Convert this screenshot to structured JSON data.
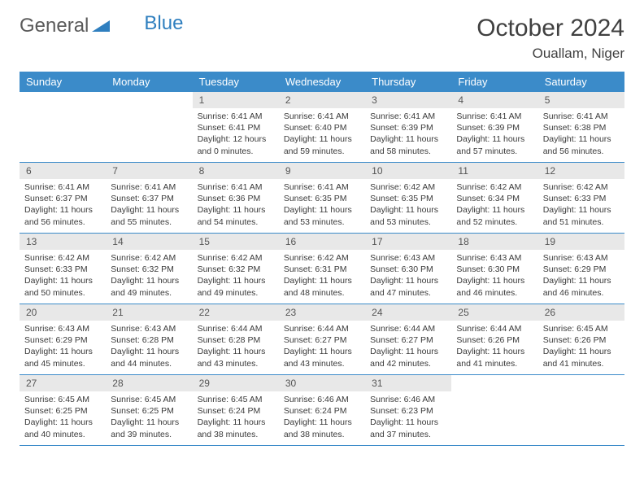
{
  "logo": {
    "text1": "General",
    "text2": "Blue"
  },
  "title": "October 2024",
  "location": "Ouallam, Niger",
  "weekdays": [
    "Sunday",
    "Monday",
    "Tuesday",
    "Wednesday",
    "Thursday",
    "Friday",
    "Saturday"
  ],
  "colors": {
    "header_bg": "#3b8bc9",
    "header_text": "#ffffff",
    "daynum_bg": "#e8e8e8",
    "week_border": "#3b8bc9",
    "body_text": "#3a3a3a",
    "logo_gray": "#5a5a5a",
    "logo_blue": "#2f7fbf"
  },
  "days": [
    {
      "n": "",
      "sr": "",
      "ss": "",
      "dl": ""
    },
    {
      "n": "",
      "sr": "",
      "ss": "",
      "dl": ""
    },
    {
      "n": "1",
      "sr": "Sunrise: 6:41 AM",
      "ss": "Sunset: 6:41 PM",
      "dl": "Daylight: 12 hours and 0 minutes."
    },
    {
      "n": "2",
      "sr": "Sunrise: 6:41 AM",
      "ss": "Sunset: 6:40 PM",
      "dl": "Daylight: 11 hours and 59 minutes."
    },
    {
      "n": "3",
      "sr": "Sunrise: 6:41 AM",
      "ss": "Sunset: 6:39 PM",
      "dl": "Daylight: 11 hours and 58 minutes."
    },
    {
      "n": "4",
      "sr": "Sunrise: 6:41 AM",
      "ss": "Sunset: 6:39 PM",
      "dl": "Daylight: 11 hours and 57 minutes."
    },
    {
      "n": "5",
      "sr": "Sunrise: 6:41 AM",
      "ss": "Sunset: 6:38 PM",
      "dl": "Daylight: 11 hours and 56 minutes."
    },
    {
      "n": "6",
      "sr": "Sunrise: 6:41 AM",
      "ss": "Sunset: 6:37 PM",
      "dl": "Daylight: 11 hours and 56 minutes."
    },
    {
      "n": "7",
      "sr": "Sunrise: 6:41 AM",
      "ss": "Sunset: 6:37 PM",
      "dl": "Daylight: 11 hours and 55 minutes."
    },
    {
      "n": "8",
      "sr": "Sunrise: 6:41 AM",
      "ss": "Sunset: 6:36 PM",
      "dl": "Daylight: 11 hours and 54 minutes."
    },
    {
      "n": "9",
      "sr": "Sunrise: 6:41 AM",
      "ss": "Sunset: 6:35 PM",
      "dl": "Daylight: 11 hours and 53 minutes."
    },
    {
      "n": "10",
      "sr": "Sunrise: 6:42 AM",
      "ss": "Sunset: 6:35 PM",
      "dl": "Daylight: 11 hours and 53 minutes."
    },
    {
      "n": "11",
      "sr": "Sunrise: 6:42 AM",
      "ss": "Sunset: 6:34 PM",
      "dl": "Daylight: 11 hours and 52 minutes."
    },
    {
      "n": "12",
      "sr": "Sunrise: 6:42 AM",
      "ss": "Sunset: 6:33 PM",
      "dl": "Daylight: 11 hours and 51 minutes."
    },
    {
      "n": "13",
      "sr": "Sunrise: 6:42 AM",
      "ss": "Sunset: 6:33 PM",
      "dl": "Daylight: 11 hours and 50 minutes."
    },
    {
      "n": "14",
      "sr": "Sunrise: 6:42 AM",
      "ss": "Sunset: 6:32 PM",
      "dl": "Daylight: 11 hours and 49 minutes."
    },
    {
      "n": "15",
      "sr": "Sunrise: 6:42 AM",
      "ss": "Sunset: 6:32 PM",
      "dl": "Daylight: 11 hours and 49 minutes."
    },
    {
      "n": "16",
      "sr": "Sunrise: 6:42 AM",
      "ss": "Sunset: 6:31 PM",
      "dl": "Daylight: 11 hours and 48 minutes."
    },
    {
      "n": "17",
      "sr": "Sunrise: 6:43 AM",
      "ss": "Sunset: 6:30 PM",
      "dl": "Daylight: 11 hours and 47 minutes."
    },
    {
      "n": "18",
      "sr": "Sunrise: 6:43 AM",
      "ss": "Sunset: 6:30 PM",
      "dl": "Daylight: 11 hours and 46 minutes."
    },
    {
      "n": "19",
      "sr": "Sunrise: 6:43 AM",
      "ss": "Sunset: 6:29 PM",
      "dl": "Daylight: 11 hours and 46 minutes."
    },
    {
      "n": "20",
      "sr": "Sunrise: 6:43 AM",
      "ss": "Sunset: 6:29 PM",
      "dl": "Daylight: 11 hours and 45 minutes."
    },
    {
      "n": "21",
      "sr": "Sunrise: 6:43 AM",
      "ss": "Sunset: 6:28 PM",
      "dl": "Daylight: 11 hours and 44 minutes."
    },
    {
      "n": "22",
      "sr": "Sunrise: 6:44 AM",
      "ss": "Sunset: 6:28 PM",
      "dl": "Daylight: 11 hours and 43 minutes."
    },
    {
      "n": "23",
      "sr": "Sunrise: 6:44 AM",
      "ss": "Sunset: 6:27 PM",
      "dl": "Daylight: 11 hours and 43 minutes."
    },
    {
      "n": "24",
      "sr": "Sunrise: 6:44 AM",
      "ss": "Sunset: 6:27 PM",
      "dl": "Daylight: 11 hours and 42 minutes."
    },
    {
      "n": "25",
      "sr": "Sunrise: 6:44 AM",
      "ss": "Sunset: 6:26 PM",
      "dl": "Daylight: 11 hours and 41 minutes."
    },
    {
      "n": "26",
      "sr": "Sunrise: 6:45 AM",
      "ss": "Sunset: 6:26 PM",
      "dl": "Daylight: 11 hours and 41 minutes."
    },
    {
      "n": "27",
      "sr": "Sunrise: 6:45 AM",
      "ss": "Sunset: 6:25 PM",
      "dl": "Daylight: 11 hours and 40 minutes."
    },
    {
      "n": "28",
      "sr": "Sunrise: 6:45 AM",
      "ss": "Sunset: 6:25 PM",
      "dl": "Daylight: 11 hours and 39 minutes."
    },
    {
      "n": "29",
      "sr": "Sunrise: 6:45 AM",
      "ss": "Sunset: 6:24 PM",
      "dl": "Daylight: 11 hours and 38 minutes."
    },
    {
      "n": "30",
      "sr": "Sunrise: 6:46 AM",
      "ss": "Sunset: 6:24 PM",
      "dl": "Daylight: 11 hours and 38 minutes."
    },
    {
      "n": "31",
      "sr": "Sunrise: 6:46 AM",
      "ss": "Sunset: 6:23 PM",
      "dl": "Daylight: 11 hours and 37 minutes."
    },
    {
      "n": "",
      "sr": "",
      "ss": "",
      "dl": ""
    },
    {
      "n": "",
      "sr": "",
      "ss": "",
      "dl": ""
    }
  ]
}
